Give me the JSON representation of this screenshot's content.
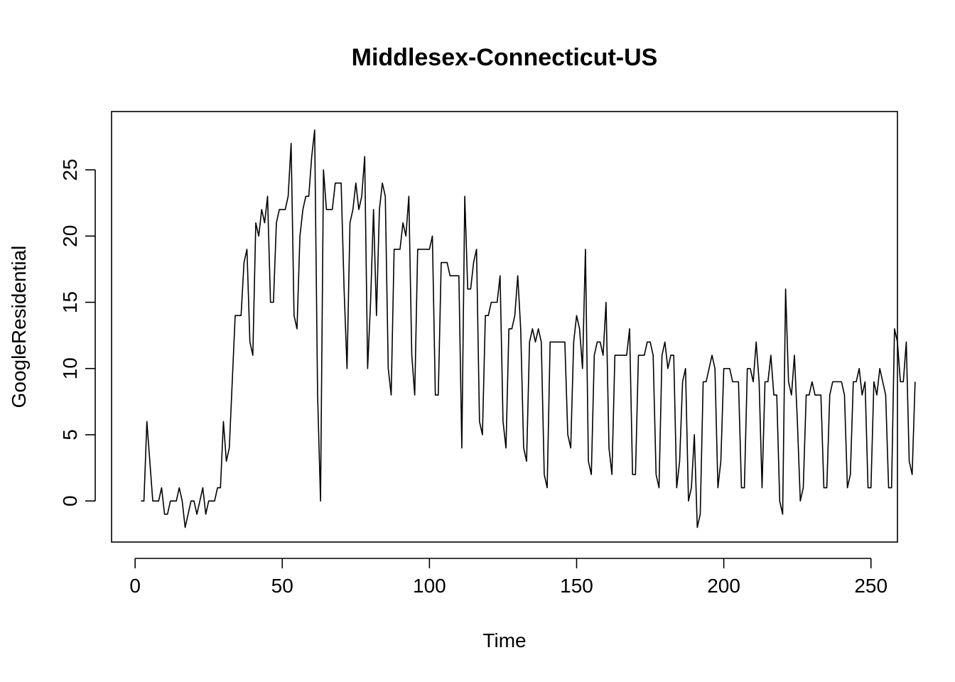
{
  "chart_data": {
    "type": "line",
    "title": "Middlesex-Connecticut-US",
    "xlabel": "Time",
    "ylabel": "GoogleResidential",
    "xlim": [
      -8,
      259
    ],
    "ylim": [
      -3.1,
      29.4
    ],
    "x_ticks": [
      0,
      50,
      100,
      150,
      200,
      250
    ],
    "y_ticks": [
      0,
      5,
      10,
      15,
      20,
      25
    ],
    "grid": false,
    "legend": "none",
    "line_color": "#000000",
    "series": [
      {
        "x_start": 2,
        "values": [
          0,
          0,
          6,
          3,
          0,
          0,
          0,
          1,
          -1,
          -1,
          0,
          0,
          0,
          1,
          0,
          -2,
          -1,
          0,
          0,
          -1,
          0,
          1,
          -1,
          0,
          0,
          0,
          1,
          1,
          6,
          3,
          4,
          9,
          14,
          14,
          14,
          18,
          19,
          12,
          11,
          21,
          20,
          22,
          21,
          23,
          15,
          15,
          21,
          22,
          22,
          22,
          23,
          27,
          14,
          13,
          20,
          22,
          23,
          23,
          26,
          28,
          8,
          0,
          25,
          22,
          22,
          22,
          24,
          24,
          24,
          16,
          10,
          21,
          22,
          24,
          22,
          23,
          26,
          10,
          15,
          22,
          14,
          22,
          24,
          23,
          10,
          8,
          19,
          19,
          19,
          21,
          20,
          23,
          11,
          8,
          19,
          19,
          19,
          19,
          19,
          20,
          8,
          8,
          18,
          18,
          18,
          17,
          17,
          17,
          17,
          4,
          23,
          16,
          16,
          18,
          19,
          6,
          5,
          14,
          14,
          15,
          15,
          15,
          17,
          6,
          4,
          13,
          13,
          14,
          17,
          13,
          4,
          3,
          12,
          13,
          12,
          13,
          12,
          2,
          1,
          12,
          12,
          12,
          12,
          12,
          12,
          5,
          4,
          12,
          14,
          13,
          10,
          19,
          3,
          2,
          11,
          12,
          12,
          11,
          15,
          4,
          2,
          11,
          11,
          11,
          11,
          11,
          13,
          2,
          2,
          11,
          11,
          11,
          12,
          12,
          11,
          2,
          1,
          11,
          12,
          10,
          11,
          11,
          1,
          3,
          9,
          10,
          0,
          1,
          5,
          -2,
          -1,
          9,
          9,
          10,
          11,
          10,
          1,
          3,
          10,
          10,
          10,
          9,
          9,
          9,
          1,
          1,
          10,
          10,
          9,
          12,
          9,
          1,
          9,
          9,
          11,
          8,
          8,
          0,
          -1,
          16,
          9,
          8,
          11,
          6,
          0,
          1,
          8,
          8,
          9,
          8,
          8,
          8,
          1,
          1,
          8,
          9,
          9,
          9,
          9,
          8,
          1,
          2,
          9,
          9,
          10,
          8,
          9,
          1,
          1,
          9,
          8,
          10,
          9,
          8,
          1,
          1,
          13,
          12,
          9,
          9,
          12,
          3,
          2,
          9
        ]
      }
    ]
  }
}
